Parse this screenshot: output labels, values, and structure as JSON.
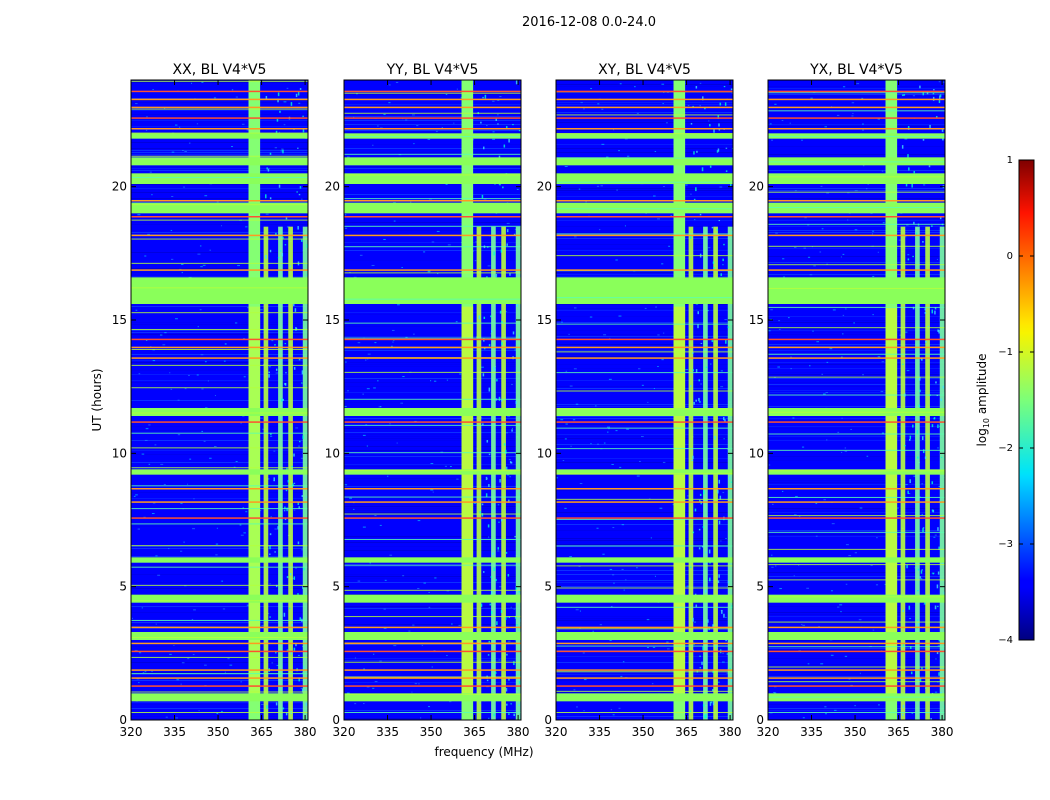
{
  "suptitle": "2016-12-08 0.0-24.0",
  "chart_data": {
    "type": "heatmap",
    "xlabel": "frequency (MHz)",
    "ylabel": "UT (hours)",
    "xlim": [
      320,
      381
    ],
    "ylim": [
      0,
      24
    ],
    "xticks": [
      320,
      335,
      350,
      365,
      380
    ],
    "yticks": [
      0,
      5,
      10,
      15,
      20
    ],
    "colormap": "jet",
    "colorbar": {
      "label": "log10 amplitude",
      "label_base": "log",
      "label_sub": "10",
      "label_rest": " amplitude",
      "range": [
        -4,
        1
      ],
      "ticks": [
        "−4",
        "−3",
        "−2",
        "−1",
        "0",
        "1"
      ]
    },
    "panels": [
      {
        "title": "XX, BL V4*V5",
        "bright_band_mhz": [
          360.5,
          364.5
        ],
        "feature_lines_mhz": [
          366.5,
          371.5,
          375.0,
          380.0
        ]
      },
      {
        "title": "YY, BL V4*V5",
        "bright_band_mhz": [
          360.5,
          364.5
        ],
        "feature_lines_mhz": [
          366.5,
          371.5,
          375.0,
          380.0
        ]
      },
      {
        "title": "XY, BL V4*V5",
        "bright_band_mhz": [
          360.5,
          364.5
        ],
        "feature_lines_mhz": [
          366.5,
          371.5,
          375.0,
          380.0
        ]
      },
      {
        "title": "YX, BL V4*V5",
        "bright_band_mhz": [
          360.5,
          364.5
        ],
        "feature_lines_mhz": [
          366.5,
          371.5,
          375.0,
          380.0
        ]
      }
    ],
    "flagged_time_bands_hours": [
      [
        0.7,
        1.0
      ],
      [
        3.0,
        3.3
      ],
      [
        4.4,
        4.7
      ],
      [
        5.9,
        6.1
      ],
      [
        9.2,
        9.4
      ],
      [
        11.4,
        11.7
      ],
      [
        15.6,
        16.6
      ],
      [
        19.0,
        19.4
      ],
      [
        20.1,
        20.5
      ],
      [
        20.8,
        21.1
      ],
      [
        21.8,
        22.0
      ]
    ],
    "rfi_time_lines_hours": [
      1.3,
      1.6,
      1.9,
      2.6,
      2.9,
      3.5,
      7.6,
      8.2,
      8.7,
      11.2,
      13.6,
      14.0,
      14.3,
      16.9,
      18.2,
      18.9,
      19.5,
      22.2,
      22.6,
      23.0,
      23.3,
      23.6
    ]
  }
}
